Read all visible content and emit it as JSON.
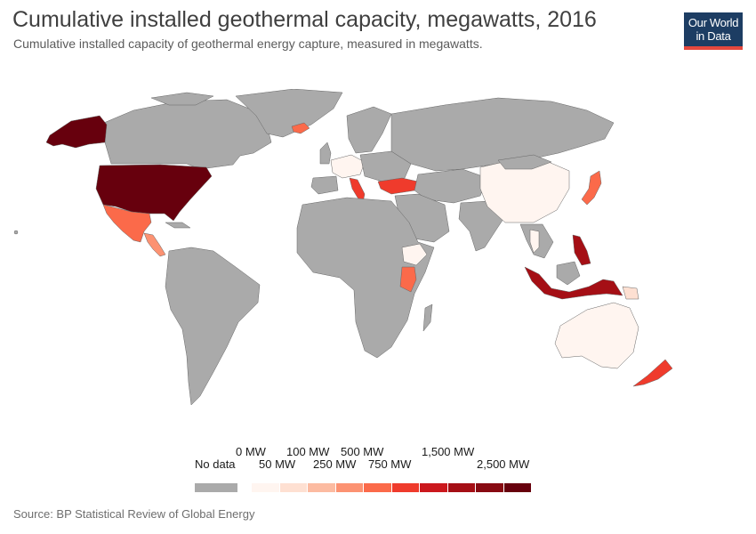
{
  "header": {
    "title": "Cumulative installed geothermal capacity, megawatts, 2016",
    "subtitle": "Cumulative installed capacity of geothermal energy capture, measured in megawatts."
  },
  "logo": {
    "line1": "Our World",
    "line2": "in Data"
  },
  "legend": {
    "no_data_label": "No data",
    "no_data_color": "#aaaaaa",
    "upper_labels": [
      "0 MW",
      "100 MW",
      "500 MW",
      "1,500 MW"
    ],
    "lower_labels": [
      "50 MW",
      "250 MW",
      "750 MW",
      "2,500 MW"
    ],
    "colors": [
      "#fff5f0",
      "#fee0d2",
      "#fcbba1",
      "#fc9272",
      "#fb6a4a",
      "#ef3b2c",
      "#cb181d",
      "#a50f15",
      "#880a12",
      "#67000d"
    ]
  },
  "map_colors": {
    "no_data": "#aaaaaa",
    "land_border": "#666666"
  },
  "countries": {
    "usa": "#67000d",
    "alaska": "#67000d",
    "mexico": "#fb6a4a",
    "central_america": "#fc9272",
    "iceland": "#fb6a4a",
    "italy": "#ef3b2c",
    "turkey": "#ef3b2c",
    "portugal_azores": "#fee0d2",
    "germany_france": "#fff5f0",
    "ethiopia": "#fff5f0",
    "kenya": "#fb6a4a",
    "china": "#fff5f0",
    "japan": "#fb6a4a",
    "thailand": "#fff5f0",
    "philippines": "#a50f15",
    "indonesia": "#a50f15",
    "papua_new_guinea": "#fee0d2",
    "australia": "#fff5f0",
    "new_zealand": "#ef3b2c"
  },
  "source": "Source: BP Statistical Review of Global Energy"
}
